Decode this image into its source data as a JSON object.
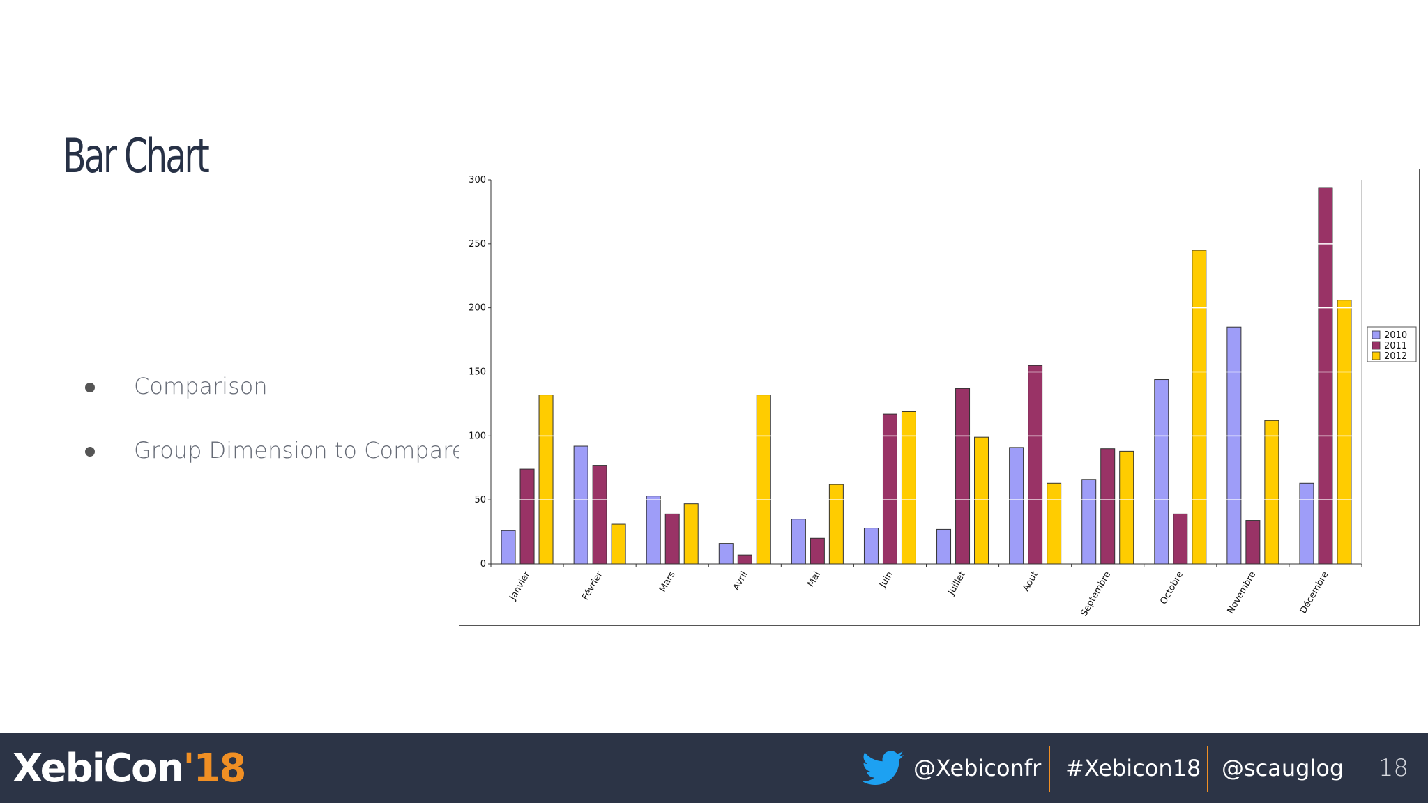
{
  "slide": {
    "title": "Bar Chart",
    "bullets": [
      "Comparison",
      "Group Dimension to Compare"
    ],
    "page_number": "18"
  },
  "footer": {
    "logo_main": "XebiCon",
    "logo_year": "'18",
    "twitter_icon": "twitter-bird-icon",
    "twitter_handle": "@Xebiconfr",
    "hashtag": "#Xebicon18",
    "speaker_handle": "@scauglog",
    "colors": {
      "background": "#2c3446",
      "accent": "#f08f24",
      "twitter": "#1da1f2"
    }
  },
  "chart_data": {
    "type": "bar",
    "categories": [
      "Janvier",
      "Février",
      "Mars",
      "Avril",
      "Mai",
      "Juin",
      "Juillet",
      "Aout",
      "Septembre",
      "Octobre",
      "Novembre",
      "Décembre"
    ],
    "series": [
      {
        "name": "2010",
        "color": "#9e9df8",
        "values": [
          26,
          92,
          53,
          16,
          35,
          28,
          27,
          91,
          66,
          144,
          185,
          63
        ]
      },
      {
        "name": "2011",
        "color": "#993366",
        "values": [
          74,
          77,
          39,
          7,
          20,
          117,
          137,
          155,
          90,
          39,
          34,
          294
        ]
      },
      {
        "name": "2012",
        "color": "#ffcc00",
        "values": [
          132,
          31,
          47,
          132,
          62,
          119,
          99,
          63,
          88,
          245,
          112,
          206
        ]
      }
    ],
    "yticks": [
      0,
      50,
      100,
      150,
      200,
      250,
      300
    ],
    "ylim": [
      0,
      300
    ],
    "grid": "horizontal-white",
    "legend_position": "right"
  }
}
